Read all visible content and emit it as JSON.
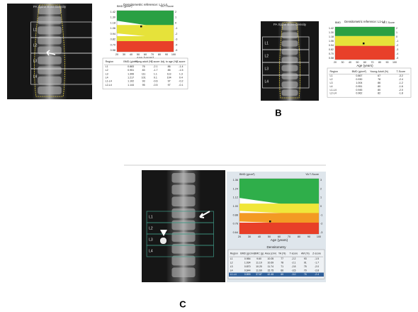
{
  "panel_a": {
    "image_title": "PA Spine Bone Density",
    "vertebrae": [
      "L1",
      "L2",
      "L3",
      "L4"
    ],
    "graph_title": "Densitometric reference: L1-L4",
    "y_label": "BMD (g/cm²)",
    "y2_label": "YA T-Score",
    "y_ticks": [
      "1.42",
      "1.30",
      "1.18",
      "1.06",
      "0.94",
      "0.82",
      "0.70",
      "0.58"
    ],
    "y2_ticks": [
      "2",
      "1",
      "0",
      "-1",
      "-2",
      "-3",
      "-4",
      "-5"
    ],
    "x_ticks": [
      "20",
      "30",
      "40",
      "50",
      "60",
      "70",
      "80",
      "90",
      "100"
    ],
    "x_label": "Age (years)",
    "table": {
      "header": [
        "Region",
        "BMD (g/cm²)",
        "Young adult (%)",
        "T-score",
        "Adj. to age (%)",
        "Z-score"
      ],
      "rows": [
        [
          "L1",
          "0.883",
          "76",
          "-2.1",
          "86",
          "-1.4"
        ],
        [
          "L2",
          "0.951",
          "83",
          "-1.7",
          "85",
          "-1.5"
        ],
        [
          "L3",
          "1.306",
          "111",
          "1.1",
          "113",
          "1.3"
        ],
        [
          "L4",
          "1.217",
          "101",
          "0.1",
          "104",
          "0.4"
        ],
        [
          "L1-L4",
          "1.102",
          "93",
          "-0.6",
          "97",
          "-0.2"
        ],
        [
          "L2-L4",
          "1.144",
          "95",
          "-0.5",
          "97",
          "-0.1"
        ]
      ]
    }
  },
  "panel_b": {
    "label": "B",
    "image_title": "PA Spine Bone Density",
    "vertebrae": [
      "L1",
      "L2",
      "L3",
      "L4"
    ],
    "graph_title": "Densitometric reference: L1-L4",
    "y_label": "BMD",
    "y2_label": "YA T-Score",
    "y_ticks": [
      "1.42",
      "1.30",
      "1.18",
      "1.06",
      "0.94",
      "0.82",
      "0.70",
      "0.58"
    ],
    "y2_ticks": [
      "2",
      "1",
      "0",
      "-1",
      "-2",
      "-3",
      "-4",
      "-5"
    ],
    "x_ticks": [
      "20",
      "30",
      "40",
      "50",
      "60",
      "70",
      "80",
      "90",
      "100"
    ],
    "x_label": "Age (years)",
    "table": {
      "header": [
        "Region",
        "BMD (g/cm²)",
        "Young-Adult (%)",
        "T-Score"
      ],
      "rows": [
        [
          "L1",
          "0.867",
          "67",
          "-3.2"
        ],
        [
          "L2",
          "0.930",
          "78",
          "-2.4"
        ],
        [
          "L3",
          "1.004",
          "86",
          "-1.2"
        ],
        [
          "L4",
          "0.951",
          "80",
          "-1.6"
        ],
        [
          "L1-L4",
          "0.945",
          "80",
          "-2.0"
        ],
        [
          "L2-L4",
          "0.962",
          "82",
          "-1.8"
        ]
      ]
    }
  },
  "panel_c": {
    "label": "C",
    "vertebrae": [
      "L1",
      "L2",
      "L3",
      "L4"
    ],
    "y_label": "BMD (g/cm²)",
    "y2_label": "YA T-Score",
    "y_ticks": [
      "1.36",
      "1.24",
      "1.12",
      "1.00",
      "0.88",
      "0.76",
      "0.64"
    ],
    "y2_ticks": [
      "3",
      "2",
      "1",
      "0",
      "-1",
      "-2",
      "-3"
    ],
    "x_ticks": [
      "20",
      "30",
      "40",
      "50",
      "60",
      "70",
      "80",
      "90",
      "100"
    ],
    "x_label": "Age (years)",
    "graph_title": "Densitometry",
    "table": {
      "header": [
        "Region",
        "BMD (g/cm²)",
        "BMC (g)",
        "Area (cm²)",
        "YA (%)",
        "T-score",
        "AM (%)",
        "Z-score"
      ],
      "rows": [
        [
          "L1",
          "0.984",
          "9.60",
          "10.05",
          "77",
          "-2.2",
          "93",
          "-1.5"
        ],
        [
          "L2",
          "1.034",
          "11.10",
          "10.69",
          "78",
          "-2.1",
          "91",
          "-1.7"
        ],
        [
          "L3",
          "0.870",
          "10.20",
          "11.74",
          "71",
          "-2.8",
          "75",
          "-2.0"
        ],
        [
          "L4",
          "0.644",
          "11.69",
          "15.75",
          "66",
          "-3.5",
          "70",
          "-2.8"
        ],
        [
          "L1-L4",
          "0.899",
          "37.87",
          "42.45",
          "69",
          "-3.0",
          "76",
          "-2.4"
        ]
      ]
    }
  }
}
